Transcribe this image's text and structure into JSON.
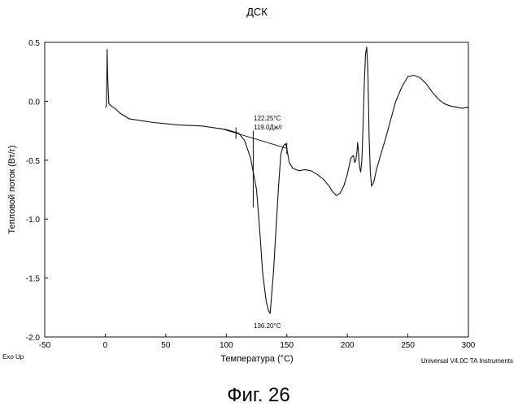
{
  "title": "ДСК",
  "xlabel": "Температура (°C)",
  "ylabel": "Тепловой поток (Вт/г)",
  "corner_left": "Exo Up",
  "corner_right": "Universal V4.0C TA Instruments",
  "caption": "Фиг. 26",
  "annotations": {
    "onset_temp": "122.25°C",
    "enthalpy": "119.0Дж/г",
    "peak_temp": "136.20°C"
  },
  "chart_data": {
    "type": "line",
    "title": "ДСК",
    "xlabel": "Температура (°C)",
    "ylabel": "Тепловой поток (Вт/г)",
    "xlim": [
      -50,
      300
    ],
    "ylim": [
      -2.0,
      0.5
    ],
    "x_ticks": [
      -50,
      0,
      50,
      100,
      150,
      200,
      250,
      300
    ],
    "y_ticks": [
      0.5,
      0.0,
      -0.5,
      -1.0,
      -1.5,
      -2.0
    ],
    "x_tick_labels": [
      "-50",
      "0",
      "50",
      "100",
      "150",
      "200",
      "250",
      "300"
    ],
    "y_tick_labels": [
      "0.5",
      "0.0",
      "-0.5",
      "-1.0",
      "-1.5",
      "-2.0"
    ],
    "grid": false,
    "series": [
      {
        "x": [
          -50,
          0,
          1,
          1.5,
          2,
          3,
          5,
          8,
          12,
          20,
          40,
          60,
          80,
          100,
          110,
          115,
          120,
          125,
          128,
          130,
          133,
          135,
          136.2,
          137,
          139,
          141,
          143,
          145,
          147,
          149,
          150,
          152,
          155,
          160,
          165,
          170,
          175,
          180,
          185,
          188,
          191,
          194,
          197,
          200,
          203,
          205,
          206,
          207,
          208,
          208.5,
          209,
          210,
          211,
          212,
          213,
          214,
          215,
          216,
          217,
          218,
          219,
          220,
          222,
          224,
          228,
          232,
          236,
          240,
          245,
          250,
          255,
          260,
          265,
          270,
          275,
          280,
          285,
          290,
          295,
          300
        ],
        "y": [
          null,
          -0.05,
          -0.04,
          0.44,
          0.2,
          -0.02,
          -0.04,
          -0.06,
          -0.1,
          -0.15,
          -0.18,
          -0.2,
          -0.21,
          -0.24,
          -0.27,
          -0.33,
          -0.48,
          -0.75,
          -1.15,
          -1.45,
          -1.7,
          -1.78,
          -1.8,
          -1.7,
          -1.45,
          -1.1,
          -0.75,
          -0.45,
          -0.38,
          -0.36,
          -0.4,
          -0.52,
          -0.57,
          -0.59,
          -0.58,
          -0.59,
          -0.62,
          -0.66,
          -0.72,
          -0.77,
          -0.8,
          -0.78,
          -0.72,
          -0.62,
          -0.48,
          -0.46,
          -0.52,
          -0.5,
          -0.42,
          -0.35,
          -0.4,
          -0.55,
          -0.6,
          -0.5,
          -0.2,
          0.15,
          0.4,
          0.46,
          0.25,
          -0.3,
          -0.6,
          -0.72,
          -0.68,
          -0.58,
          -0.44,
          -0.3,
          -0.15,
          0.0,
          0.12,
          0.21,
          0.22,
          0.2,
          0.15,
          0.08,
          0.02,
          -0.02,
          -0.04,
          -0.05,
          -0.06,
          -0.05
        ]
      }
    ],
    "baseline": {
      "x": [
        95,
        150
      ],
      "y": [
        -0.23,
        -0.4
      ]
    }
  }
}
